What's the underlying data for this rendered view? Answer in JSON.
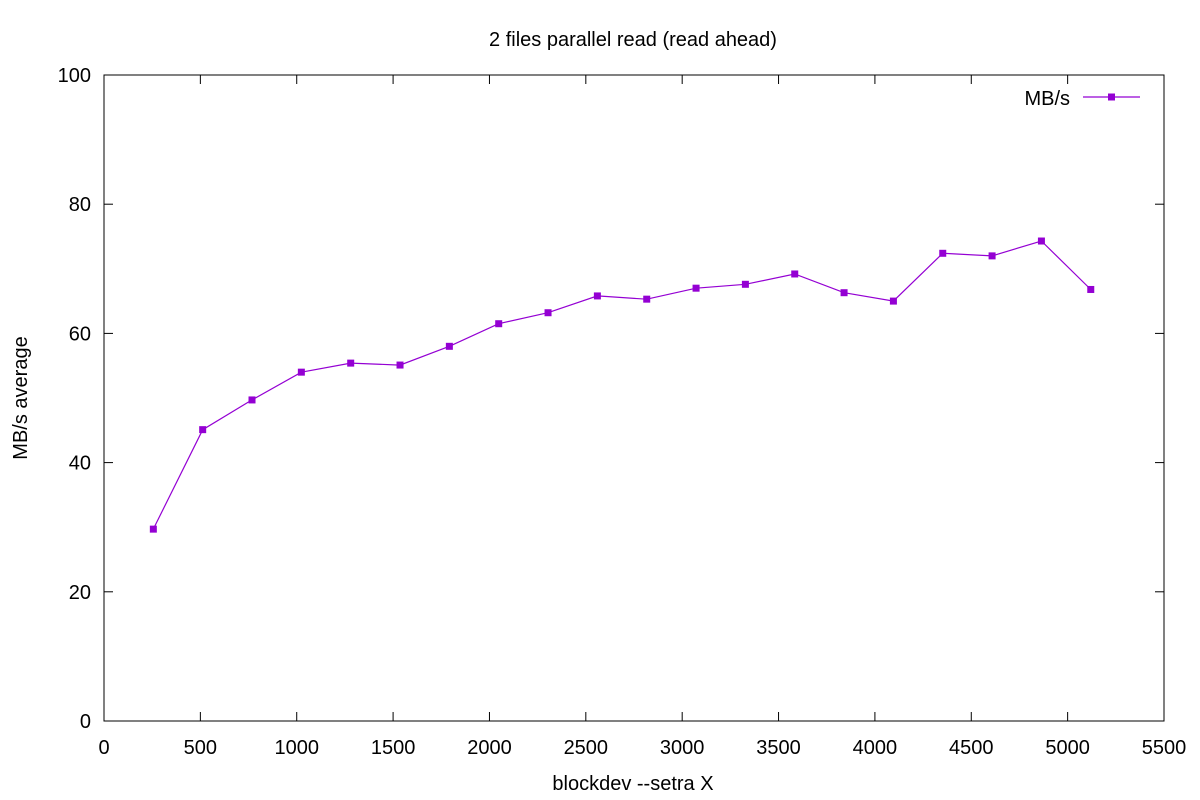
{
  "chart_data": {
    "type": "line",
    "title": "2 files parallel read (read ahead)",
    "xlabel": "blockdev --setra X",
    "ylabel": "MB/s average",
    "xlim": [
      0,
      5500
    ],
    "ylim": [
      0,
      100
    ],
    "xticks": [
      0,
      500,
      1000,
      1500,
      2000,
      2500,
      3000,
      3500,
      4000,
      4500,
      5000,
      5500
    ],
    "yticks": [
      0,
      20,
      40,
      60,
      80,
      100
    ],
    "grid": false,
    "legend_position": "top-right",
    "series": [
      {
        "name": "MB/s",
        "color": "#9400d3",
        "marker": "square",
        "x": [
          256,
          512,
          768,
          1024,
          1280,
          1536,
          1792,
          2048,
          2304,
          2560,
          2816,
          3072,
          3328,
          3584,
          3840,
          4096,
          4352,
          4608,
          4864,
          5120
        ],
        "y": [
          29.7,
          45.1,
          49.7,
          54.0,
          55.4,
          55.1,
          58.0,
          61.5,
          63.2,
          65.8,
          65.3,
          67.0,
          67.6,
          69.2,
          66.3,
          65.0,
          72.4,
          72.0,
          74.3,
          66.8
        ]
      }
    ]
  }
}
